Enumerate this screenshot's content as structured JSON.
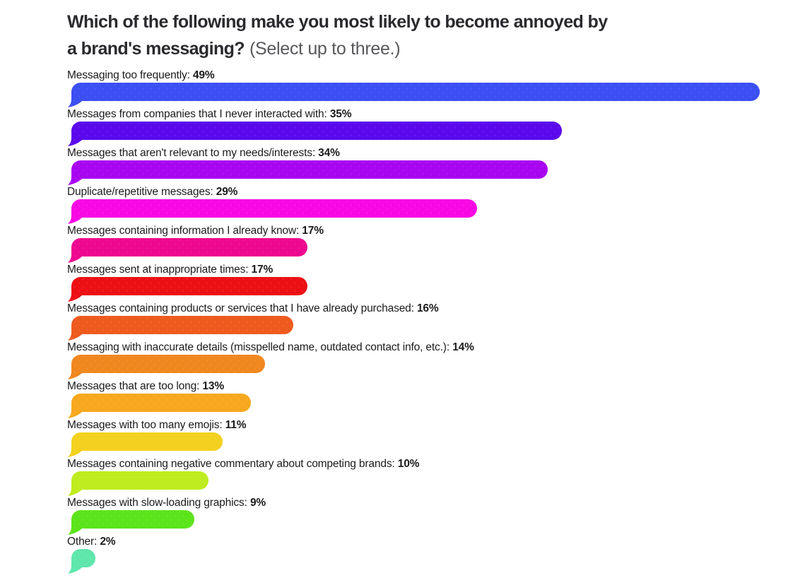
{
  "title": {
    "line1": "Which of the following make you most likely to become annoyed by",
    "line2": "a brand's messaging?",
    "suffix": "(Select up to three.)"
  },
  "chart_data": {
    "type": "bar",
    "orientation": "horizontal",
    "style": "chat-message-bubble-bars",
    "title": "Which of the following make you most likely to become annoyed by a brand's messaging?",
    "subtitle": "(Select up to three.)",
    "unit": "%",
    "xlim": [
      0,
      50
    ],
    "grid": false,
    "legend": false,
    "value_label_position": "above-bar-inline-with-category",
    "label_format": "{category}: {value}%",
    "categories": [
      "Messaging too frequently",
      "Messages from companies that I never interacted with",
      "Messages that aren't relevant to my needs/interests",
      "Duplicate/repetitive messages",
      "Messages containing information I already know",
      "Messages sent at inappropriate times",
      "Messages containing products or services that I have already purchased",
      "Messaging with inaccurate details (misspelled name, outdated contact info, etc.)",
      "Messages that are too long",
      "Messages with too many emojis",
      "Messages containing negative commentary about competing brands",
      "Messages with slow-loading graphics",
      "Other"
    ],
    "values": [
      49,
      35,
      34,
      29,
      17,
      17,
      16,
      14,
      13,
      11,
      10,
      9,
      2
    ],
    "colors": [
      "#3c4ff2",
      "#5a09ed",
      "#a805f1",
      "#f708e4",
      "#ee0890",
      "#ec1014",
      "#ee5a1e",
      "#f0871f",
      "#f7a81e",
      "#f3d11e",
      "#bfec1e",
      "#5ce41b",
      "#5fe6ab"
    ]
  },
  "text_colors": {
    "title": "#2a2a2e",
    "subtitle": "#58585c",
    "label": "#1b1b1d"
  }
}
